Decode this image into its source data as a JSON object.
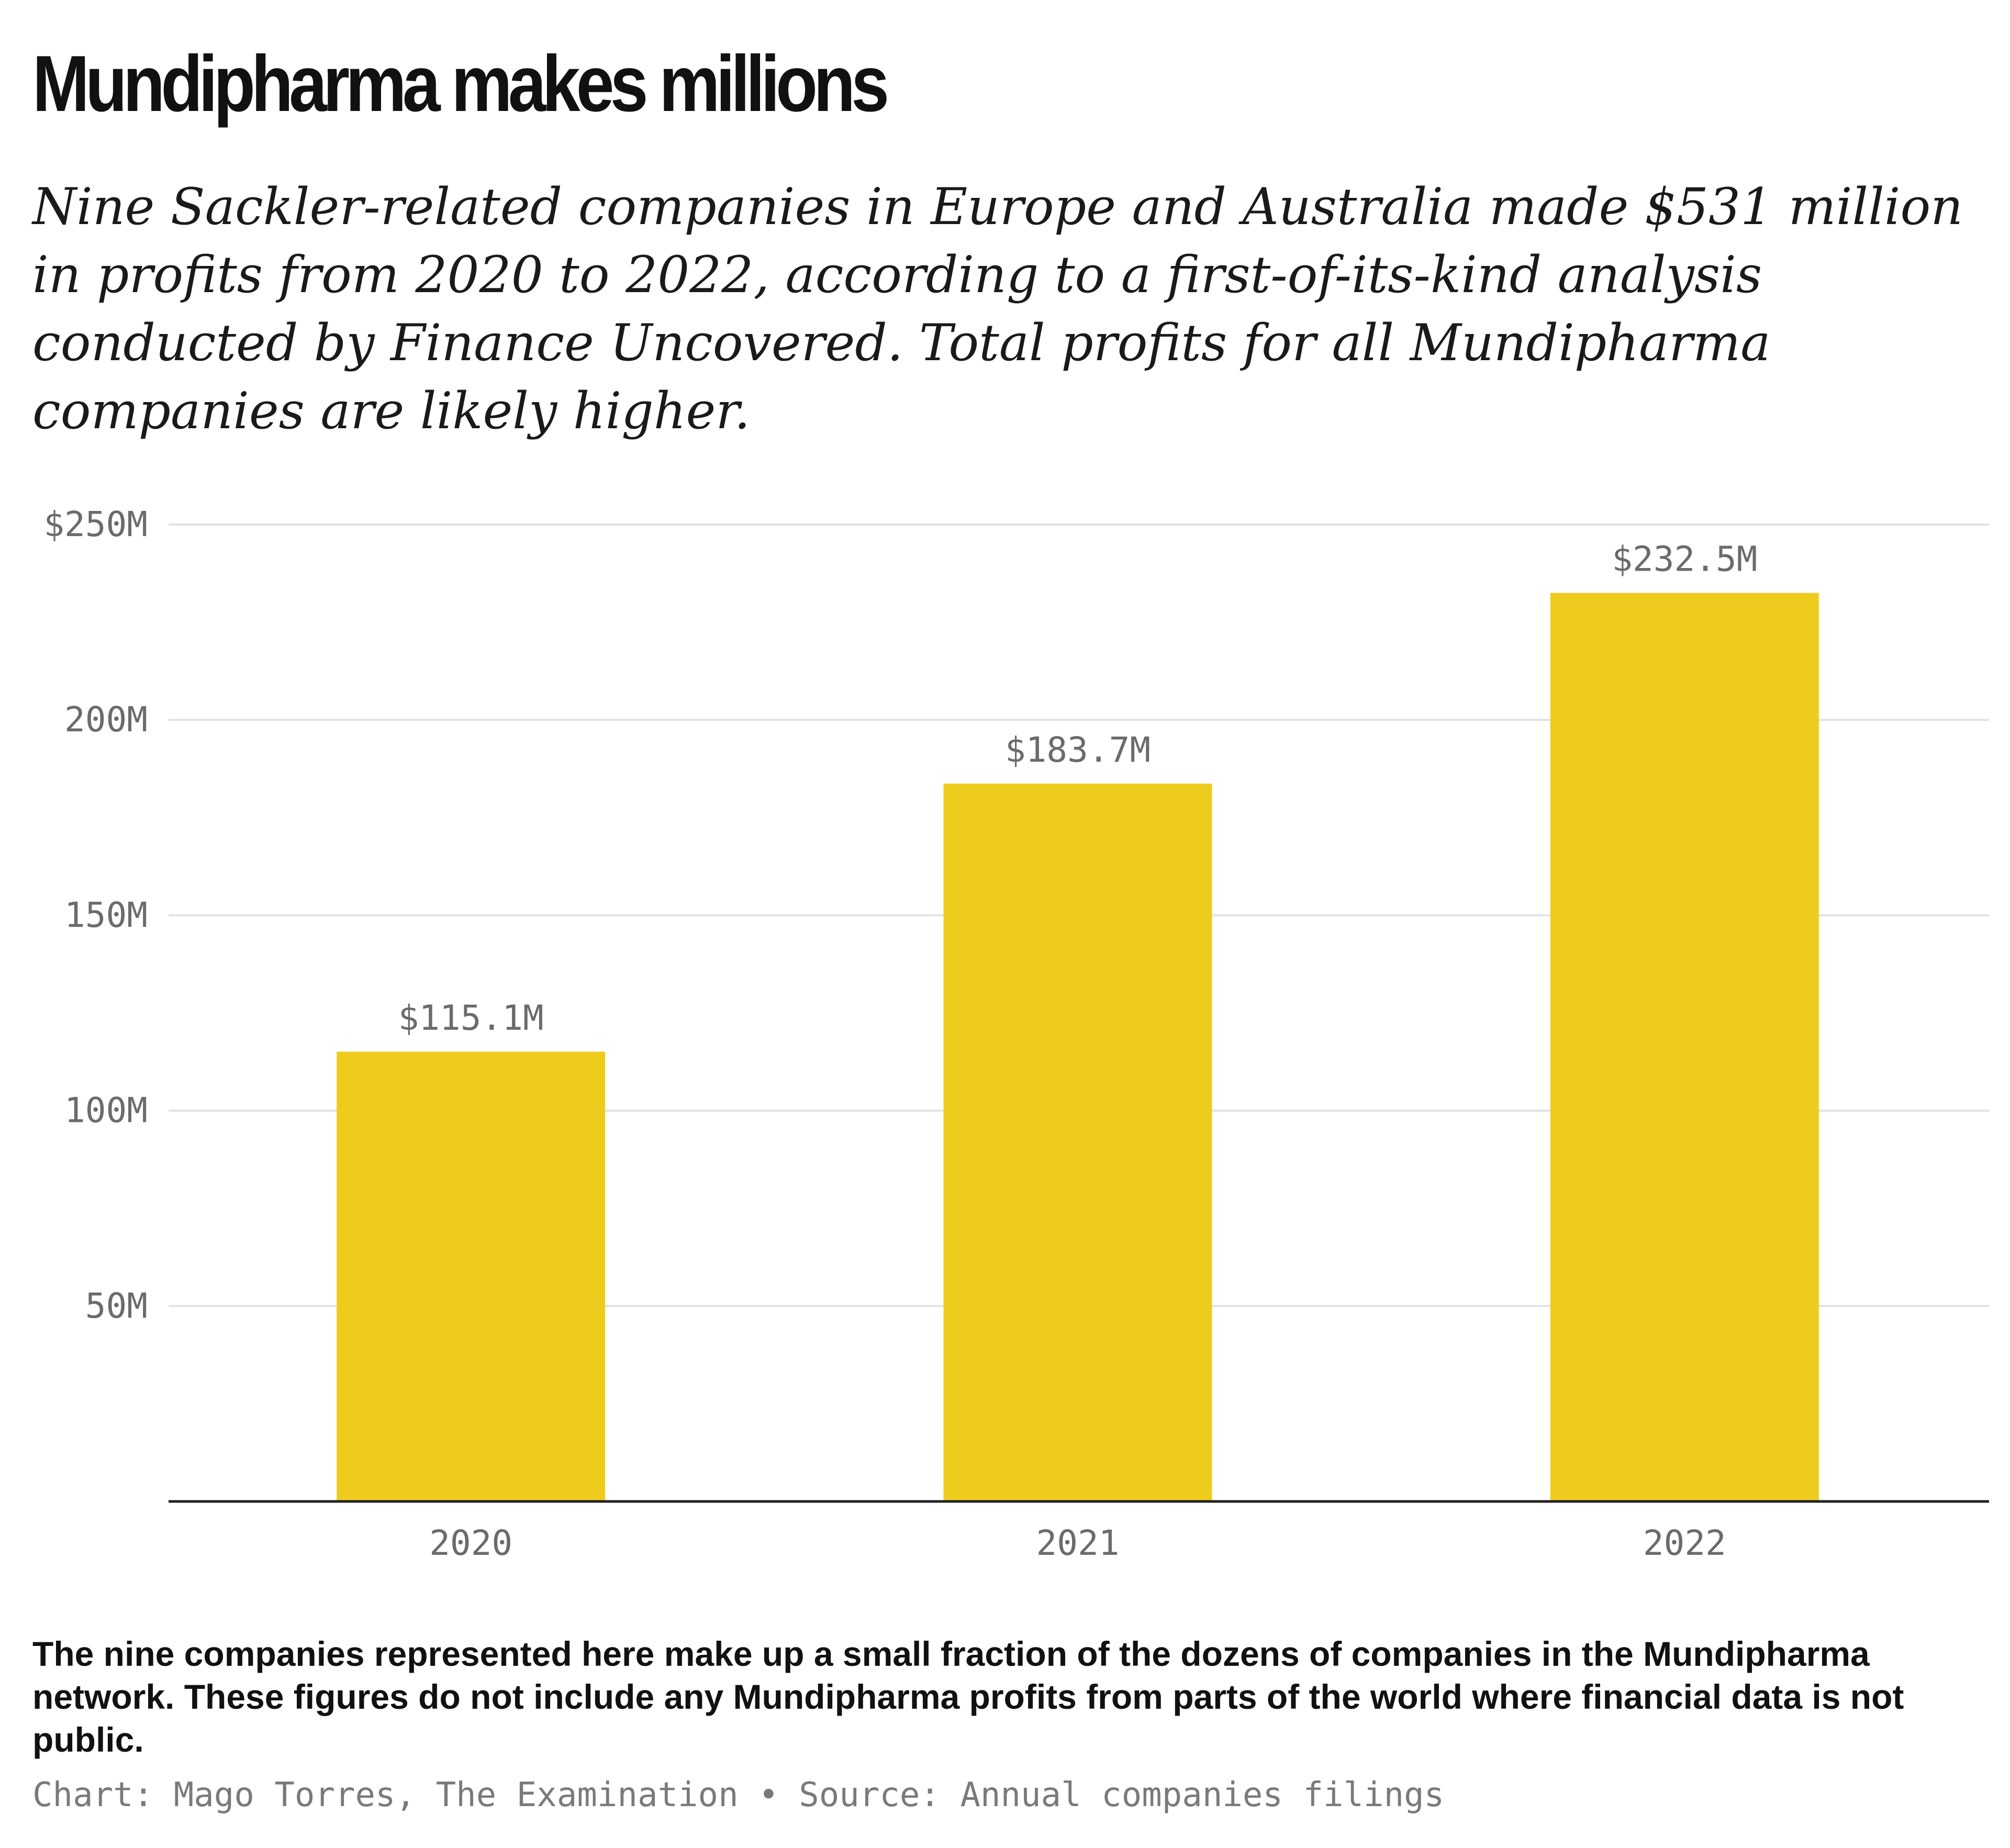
{
  "chart_data": {
    "type": "bar",
    "title": "Mundipharma makes millions",
    "subtitle": "Nine Sackler-related companies in Europe and Australia made $531 million in profits from 2020 to 2022, according to a first-of-its-kind analysis conducted by Finance Uncovered. Total profits for all Mundipharma companies are likely higher.",
    "categories": [
      "2020",
      "2021",
      "2022"
    ],
    "values": [
      115.1,
      183.7,
      232.5
    ],
    "value_labels": [
      "$115.1M",
      "$183.7M",
      "$232.5M"
    ],
    "unit": "millions of dollars",
    "ylim": [
      0,
      250
    ],
    "yticks": [
      50,
      100,
      150,
      200,
      250
    ],
    "ytick_labels": [
      "50M",
      "100M",
      "150M",
      "200M",
      "$250M"
    ],
    "grid": true,
    "bar_color": "#EECC1E",
    "note": "The nine companies represented here make up a small fraction of the dozens of companies in the Mundipharma network. These figures do not include any Mundipharma profits from parts of the world where financial data is not public.",
    "credit": "Chart: Mago Torres, The Examination • Source: Annual companies filings"
  }
}
